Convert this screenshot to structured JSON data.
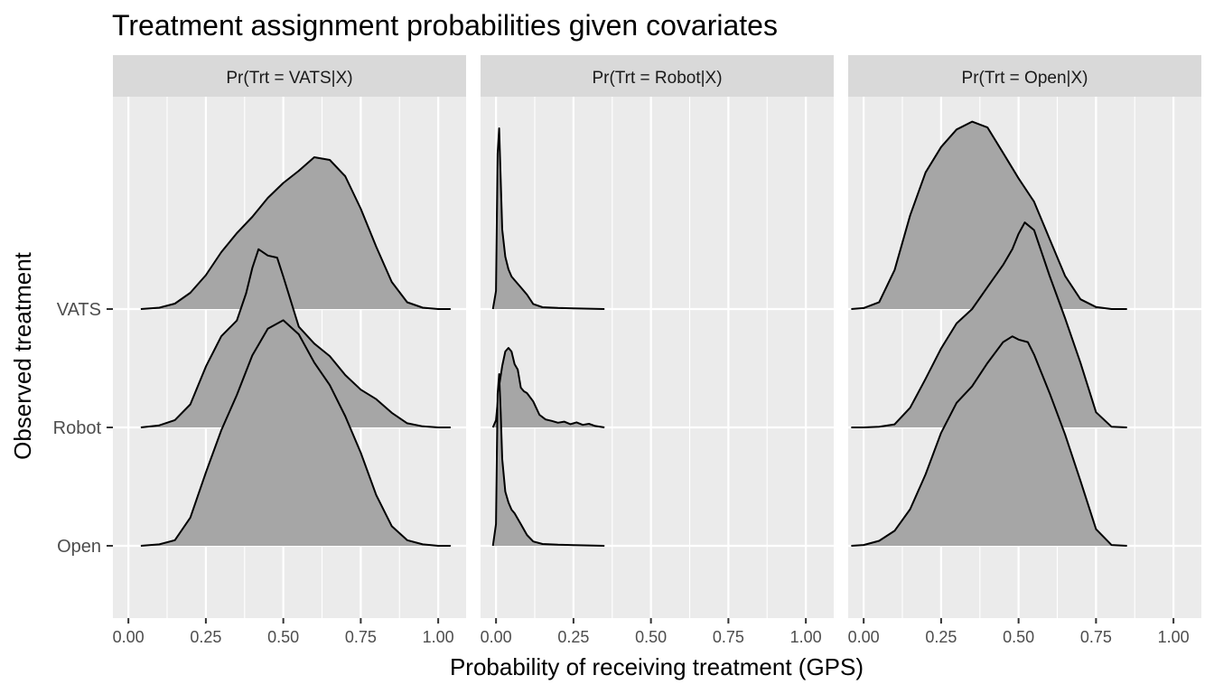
{
  "chart_data": {
    "type": "ridgeline",
    "title": "Treatment assignment probabilities given covariates",
    "xlabel": "Probability of receiving treatment (GPS)",
    "ylabel": "Observed treatment",
    "xlim": [
      -0.05,
      1.09
    ],
    "x_ticks": [
      0.0,
      0.25,
      0.5,
      0.75,
      1.0
    ],
    "x_tick_labels": [
      "0.00",
      "0.25",
      "0.50",
      "0.75",
      "1.00"
    ],
    "y_categories": [
      "VATS",
      "Robot",
      "Open"
    ],
    "grid": true,
    "facet_scales": "free_x",
    "facets": [
      {
        "label": "Pr(Trt = VATS|X)",
        "x_tick_labels": [
          "0.00",
          "0.25",
          "0.50",
          "0.75",
          "1.00"
        ],
        "series": [
          {
            "name": "VATS",
            "x": [
              0.04,
              0.1,
              0.15,
              0.2,
              0.25,
              0.3,
              0.35,
              0.4,
              0.45,
              0.5,
              0.55,
              0.6,
              0.65,
              0.7,
              0.75,
              0.8,
              0.85,
              0.9,
              0.95,
              1.0,
              1.04
            ],
            "density": [
              0.0,
              0.01,
              0.04,
              0.12,
              0.25,
              0.42,
              0.56,
              0.68,
              0.82,
              0.93,
              1.02,
              1.12,
              1.1,
              0.98,
              0.74,
              0.46,
              0.2,
              0.05,
              0.01,
              0.0,
              0.0
            ]
          },
          {
            "name": "Robot",
            "x": [
              0.04,
              0.1,
              0.15,
              0.2,
              0.25,
              0.3,
              0.35,
              0.38,
              0.4,
              0.42,
              0.45,
              0.48,
              0.5,
              0.55,
              0.6,
              0.65,
              0.7,
              0.75,
              0.8,
              0.85,
              0.9,
              0.95,
              1.0,
              1.04
            ],
            "density": [
              0.0,
              0.02,
              0.07,
              0.22,
              0.58,
              0.87,
              1.02,
              1.28,
              1.52,
              1.7,
              1.64,
              1.62,
              1.44,
              0.96,
              0.8,
              0.68,
              0.5,
              0.36,
              0.27,
              0.14,
              0.04,
              0.01,
              0.0,
              0.0
            ]
          },
          {
            "name": "Open",
            "x": [
              0.04,
              0.1,
              0.15,
              0.2,
              0.25,
              0.3,
              0.35,
              0.4,
              0.45,
              0.5,
              0.55,
              0.6,
              0.65,
              0.7,
              0.75,
              0.8,
              0.85,
              0.9,
              0.95,
              1.0,
              1.04
            ],
            "density": [
              0.0,
              0.01,
              0.04,
              0.2,
              0.52,
              0.82,
              1.07,
              1.35,
              1.54,
              1.6,
              1.5,
              1.3,
              1.14,
              0.92,
              0.66,
              0.36,
              0.14,
              0.04,
              0.01,
              0.0,
              0.0
            ]
          }
        ]
      },
      {
        "label": "Pr(Trt = Robot|X)",
        "x_tick_labels": [
          "0.00",
          "0.25",
          "0.50",
          "0.75",
          "1.00"
        ],
        "series": [
          {
            "name": "VATS",
            "x": [
              -0.01,
              0.0,
              0.005,
              0.01,
              0.015,
              0.02,
              0.03,
              0.04,
              0.05,
              0.06,
              0.08,
              0.1,
              0.12,
              0.15,
              0.2,
              0.25,
              0.3,
              0.35
            ],
            "density": [
              0.0,
              0.5,
              4.3,
              5.0,
              3.6,
              2.2,
              1.45,
              1.1,
              0.9,
              0.8,
              0.6,
              0.4,
              0.14,
              0.05,
              0.03,
              0.02,
              0.01,
              0.0
            ]
          },
          {
            "name": "Robot",
            "x": [
              -0.01,
              0.0,
              0.01,
              0.02,
              0.03,
              0.04,
              0.05,
              0.06,
              0.07,
              0.08,
              0.09,
              0.1,
              0.12,
              0.14,
              0.16,
              0.18,
              0.2,
              0.22,
              0.24,
              0.26,
              0.28,
              0.3,
              0.32,
              0.35
            ],
            "density": [
              0.0,
              0.2,
              1.15,
              1.7,
              2.1,
              2.2,
              2.1,
              1.75,
              1.6,
              1.1,
              1.0,
              0.95,
              0.72,
              0.35,
              0.22,
              0.18,
              0.13,
              0.16,
              0.09,
              0.14,
              0.07,
              0.1,
              0.04,
              0.0
            ]
          },
          {
            "name": "Open",
            "x": [
              -0.01,
              0.0,
              0.005,
              0.01,
              0.015,
              0.02,
              0.03,
              0.04,
              0.05,
              0.06,
              0.08,
              0.1,
              0.12,
              0.15,
              0.2,
              0.25,
              0.3,
              0.35
            ],
            "density": [
              0.0,
              0.6,
              4.2,
              4.75,
              3.7,
              2.4,
              1.5,
              1.2,
              1.0,
              0.9,
              0.6,
              0.3,
              0.12,
              0.05,
              0.03,
              0.02,
              0.01,
              0.0
            ]
          }
        ]
      },
      {
        "label": "Pr(Trt = Open|X)",
        "x_tick_labels": [
          "0.00",
          "0.25",
          "0.50",
          "0.75",
          "1.00"
        ],
        "series": [
          {
            "name": "VATS",
            "x": [
              -0.04,
              0.0,
              0.05,
              0.1,
              0.15,
              0.2,
              0.25,
              0.3,
              0.35,
              0.4,
              0.45,
              0.5,
              0.55,
              0.6,
              0.65,
              0.7,
              0.75,
              0.8,
              0.85
            ],
            "density": [
              0.0,
              0.01,
              0.07,
              0.4,
              0.96,
              1.4,
              1.66,
              1.84,
              1.92,
              1.86,
              1.6,
              1.34,
              1.1,
              0.72,
              0.34,
              0.1,
              0.02,
              0.0,
              0.0
            ]
          },
          {
            "name": "Robot",
            "x": [
              -0.04,
              0.0,
              0.05,
              0.1,
              0.15,
              0.2,
              0.25,
              0.3,
              0.35,
              0.4,
              0.45,
              0.48,
              0.5,
              0.52,
              0.55,
              0.6,
              0.65,
              0.7,
              0.75,
              0.8,
              0.85
            ],
            "density": [
              0.0,
              0.0,
              0.01,
              0.04,
              0.26,
              0.64,
              1.04,
              1.37,
              1.56,
              1.85,
              2.14,
              2.35,
              2.55,
              2.7,
              2.6,
              2.0,
              1.44,
              0.85,
              0.2,
              0.01,
              0.0
            ]
          },
          {
            "name": "Open",
            "x": [
              -0.04,
              0.0,
              0.05,
              0.1,
              0.15,
              0.2,
              0.25,
              0.3,
              0.35,
              0.4,
              0.45,
              0.48,
              0.5,
              0.53,
              0.55,
              0.6,
              0.65,
              0.7,
              0.75,
              0.8,
              0.85
            ],
            "density": [
              0.0,
              0.01,
              0.06,
              0.18,
              0.44,
              0.86,
              1.36,
              1.72,
              1.92,
              2.2,
              2.45,
              2.52,
              2.48,
              2.45,
              2.3,
              1.84,
              1.34,
              0.78,
              0.2,
              0.01,
              0.0
            ]
          }
        ]
      }
    ]
  }
}
